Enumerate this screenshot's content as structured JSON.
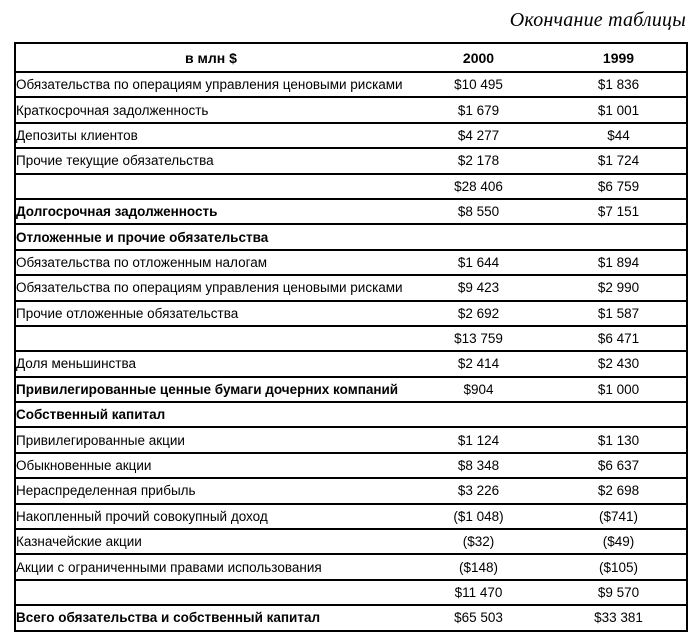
{
  "page": {
    "caption": "Окончание таблицы"
  },
  "table": {
    "headers": [
      "в млн $",
      "2000",
      "1999"
    ],
    "rows": [
      {
        "label": "Обязательства по операциям управления ценовыми рисками",
        "bold": false,
        "v2000": "$10 495",
        "v1999": "$1 836"
      },
      {
        "label": "Краткосрочная задолженность",
        "bold": false,
        "v2000": "$1 679",
        "v1999": "$1 001"
      },
      {
        "label": "Депозиты клиентов",
        "bold": false,
        "v2000": "$4 277",
        "v1999": "$44"
      },
      {
        "label": "Прочие текущие обязательства",
        "bold": false,
        "v2000": "$2 178",
        "v1999": "$1 724"
      },
      {
        "label": "",
        "bold": false,
        "v2000": "$28 406",
        "v1999": "$6 759"
      },
      {
        "label": "Долгосрочная задолженность",
        "bold": true,
        "v2000": "$8 550",
        "v1999": "$7 151"
      },
      {
        "label": "Отложенные и прочие обязательства",
        "bold": true,
        "v2000": "",
        "v1999": ""
      },
      {
        "label": "Обязательства по отложенным налогам",
        "bold": false,
        "v2000": "$1 644",
        "v1999": "$1 894"
      },
      {
        "label": "Обязательства по операциям управления ценовыми рисками",
        "bold": false,
        "v2000": "$9 423",
        "v1999": "$2 990"
      },
      {
        "label": "Прочие отложенные обязательства",
        "bold": false,
        "v2000": "$2 692",
        "v1999": "$1 587"
      },
      {
        "label": "",
        "bold": false,
        "v2000": "$13 759",
        "v1999": "$6 471"
      },
      {
        "label": "Доля меньшинства",
        "bold": false,
        "v2000": "$2 414",
        "v1999": "$2 430"
      },
      {
        "label": "Привилегированные ценные бумаги дочерних компаний",
        "bold": true,
        "v2000": "$904",
        "v1999": "$1 000"
      },
      {
        "label": "Собственный капитал",
        "bold": true,
        "v2000": "",
        "v1999": ""
      },
      {
        "label": "Привилегированные акции",
        "bold": false,
        "v2000": "$1 124",
        "v1999": "$1 130"
      },
      {
        "label": "Обыкновенные акции",
        "bold": false,
        "v2000": "$8 348",
        "v1999": "$6 637"
      },
      {
        "label": "Нераспределенная прибыль",
        "bold": false,
        "v2000": "$3 226",
        "v1999": "$2 698"
      },
      {
        "label": "Накопленный прочий совокупный доход",
        "bold": false,
        "v2000": "($1 048)",
        "v1999": "($741)"
      },
      {
        "label": "Казначейские акции",
        "bold": false,
        "v2000": "($32)",
        "v1999": "($49)"
      },
      {
        "label": "Акции с ограниченными правами использования",
        "bold": false,
        "v2000": "($148)",
        "v1999": "($105)"
      },
      {
        "label": "",
        "bold": false,
        "v2000": "$11 470",
        "v1999": "$9 570"
      },
      {
        "label": "Всего обязательства и собственный капитал",
        "bold": true,
        "v2000": "$65 503",
        "v1999": "$33 381"
      }
    ]
  }
}
